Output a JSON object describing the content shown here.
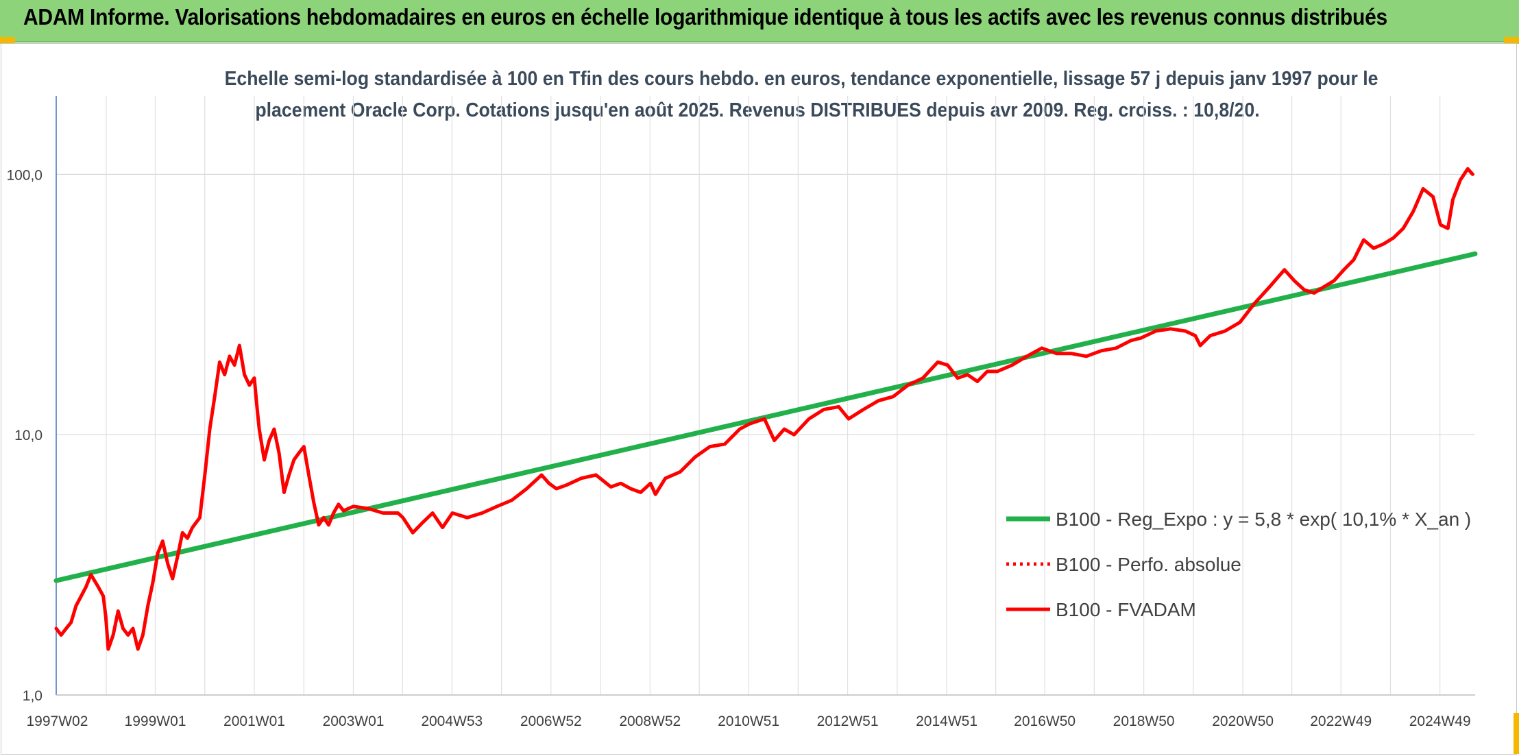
{
  "banner": {
    "title": "ADAM Informe. Valorisations hebdomadaires en euros en échelle logarithmique identique à tous les actifs avec les revenus connus distribués"
  },
  "chart_data": {
    "type": "line",
    "title_line1": "Echelle semi-log standardisée à 100 en Tfin des cours hebdo. en euros, tendance exponentielle, lissage 57 j depuis janv 1997 pour le",
    "title_line2": "placement Oracle Corp. Cotations jusqu'en août 2025. Revenus DISTRIBUES depuis avr 2009. Reg. croiss. : 10,8/20.",
    "y_scale": "log",
    "ylim": [
      1,
      200
    ],
    "y_ticks": [
      1,
      10,
      100
    ],
    "y_tick_labels": [
      "1,0",
      "10,0",
      "100,0"
    ],
    "xlim": [
      1997.0,
      2025.65
    ],
    "x_ticks": [
      1997.02,
      1999.0,
      2001.0,
      2003.0,
      2004.99,
      2006.99,
      2008.99,
      2010.98,
      2012.98,
      2014.98,
      2016.96,
      2018.96,
      2020.96,
      2022.94,
      2024.94
    ],
    "x_tick_labels": [
      "1997W02",
      "1999W01",
      "2001W01",
      "2003W01",
      "2004W53",
      "2006W52",
      "2008W52",
      "2010W51",
      "2012W51",
      "2014W51",
      "2016W50",
      "2018W50",
      "2020W50",
      "2022W49",
      "2024W49"
    ],
    "grid": true,
    "legend_position": "right",
    "series": [
      {
        "name": "B100 - Reg_Expo : y = 5,8 * exp( 10,1% *  X_an )",
        "color": "#22b04b",
        "style": "solid",
        "x": [
          1997.0,
          2025.65
        ],
        "y": [
          2.75,
          49.5
        ]
      },
      {
        "name": "B100 - Perfo. absolue",
        "color": "#ff0000",
        "style": "dotted",
        "x": [],
        "y": []
      },
      {
        "name": "B100 - FVADAM",
        "color": "#ff0000",
        "style": "solid",
        "x": [
          1997.0,
          1997.1,
          1997.2,
          1997.3,
          1997.4,
          1997.6,
          1997.7,
          1997.85,
          1997.95,
          1998.0,
          1998.05,
          1998.15,
          1998.25,
          1998.35,
          1998.45,
          1998.55,
          1998.65,
          1998.75,
          1998.85,
          1998.95,
          1999.05,
          1999.15,
          1999.25,
          1999.35,
          1999.45,
          1999.55,
          1999.65,
          1999.75,
          1999.9,
          2000.0,
          2000.1,
          2000.2,
          2000.3,
          2000.4,
          2000.5,
          2000.6,
          2000.7,
          2000.8,
          2000.9,
          2001.0,
          2001.05,
          2001.1,
          2001.2,
          2001.3,
          2001.4,
          2001.5,
          2001.6,
          2001.7,
          2001.8,
          2001.9,
          2002.0,
          2002.1,
          2002.2,
          2002.3,
          2002.4,
          2002.5,
          2002.6,
          2002.7,
          2002.8,
          2002.9,
          2003.0,
          2003.3,
          2003.6,
          2003.9,
          2004.0,
          2004.2,
          2004.4,
          2004.6,
          2004.8,
          2005.0,
          2005.3,
          2005.6,
          2005.9,
          2006.2,
          2006.5,
          2006.8,
          2006.95,
          2007.1,
          2007.3,
          2007.6,
          2007.9,
          2008.2,
          2008.4,
          2008.6,
          2008.8,
          2009.0,
          2009.1,
          2009.3,
          2009.6,
          2009.9,
          2010.2,
          2010.5,
          2010.8,
          2011.0,
          2011.3,
          2011.5,
          2011.7,
          2011.9,
          2012.2,
          2012.5,
          2012.8,
          2013.0,
          2013.3,
          2013.6,
          2013.9,
          2014.2,
          2014.5,
          2014.8,
          2015.0,
          2015.2,
          2015.4,
          2015.6,
          2015.8,
          2016.0,
          2016.3,
          2016.6,
          2016.9,
          2017.2,
          2017.5,
          2017.8,
          2018.1,
          2018.4,
          2018.7,
          2018.9,
          2019.2,
          2019.5,
          2019.8,
          2020.0,
          2020.1,
          2020.3,
          2020.6,
          2020.9,
          2021.2,
          2021.5,
          2021.8,
          2022.0,
          2022.2,
          2022.4,
          2022.6,
          2022.8,
          2023.0,
          2023.2,
          2023.4,
          2023.6,
          2023.8,
          2024.0,
          2024.2,
          2024.4,
          2024.6,
          2024.8,
          2024.95,
          2025.1,
          2025.2,
          2025.35,
          2025.5,
          2025.6
        ],
        "y": [
          1.8,
          1.7,
          1.8,
          1.9,
          2.2,
          2.6,
          2.9,
          2.6,
          2.4,
          2.0,
          1.5,
          1.7,
          2.1,
          1.8,
          1.7,
          1.8,
          1.5,
          1.7,
          2.2,
          2.7,
          3.5,
          3.9,
          3.2,
          2.8,
          3.4,
          4.2,
          4.0,
          4.4,
          4.8,
          7.0,
          10.5,
          14.0,
          19.0,
          17.0,
          20.0,
          18.5,
          22.0,
          17.0,
          15.5,
          16.5,
          13.0,
          10.5,
          8.0,
          9.5,
          10.5,
          8.5,
          6.0,
          7.0,
          8.0,
          8.5,
          9.0,
          7.0,
          5.5,
          4.5,
          4.8,
          4.5,
          5.0,
          5.4,
          5.1,
          5.2,
          5.3,
          5.2,
          5.0,
          5.0,
          4.8,
          4.2,
          4.6,
          5.0,
          4.4,
          5.0,
          4.8,
          5.0,
          5.3,
          5.6,
          6.2,
          7.0,
          6.5,
          6.2,
          6.4,
          6.8,
          7.0,
          6.3,
          6.5,
          6.2,
          6.0,
          6.5,
          5.9,
          6.8,
          7.2,
          8.2,
          9.0,
          9.2,
          10.5,
          11.0,
          11.5,
          9.5,
          10.5,
          10.0,
          11.5,
          12.5,
          12.8,
          11.5,
          12.5,
          13.5,
          14.0,
          15.5,
          16.5,
          19.0,
          18.5,
          16.5,
          17.0,
          16.0,
          17.5,
          17.5,
          18.5,
          20.0,
          21.5,
          20.5,
          20.5,
          20.0,
          21.0,
          21.5,
          23.0,
          23.5,
          25.0,
          25.5,
          25.0,
          24.0,
          22.0,
          24.0,
          25.0,
          27.0,
          32.0,
          37.0,
          43.0,
          39.0,
          36.0,
          35.0,
          37.0,
          39.0,
          43.0,
          47.0,
          56.0,
          52.0,
          54.0,
          57.0,
          62.0,
          72.0,
          88.0,
          82.0,
          64.0,
          62.0,
          80.0,
          95.0,
          105.0,
          100.0
        ]
      }
    ]
  }
}
